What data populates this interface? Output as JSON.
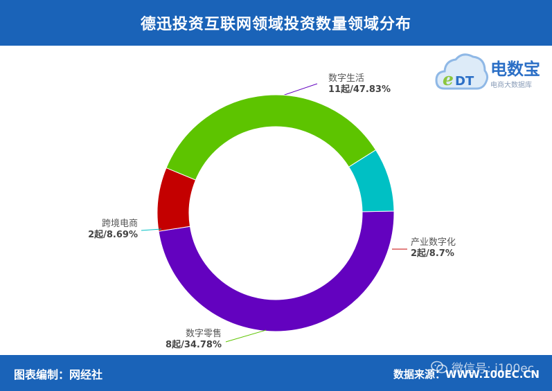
{
  "header": {
    "title": "德迅投资互联网领域投资数量领域分布"
  },
  "logo": {
    "icon": "cloud-edt-icon",
    "name": "电数宝",
    "tagline": "电商大数据库"
  },
  "chart_data": {
    "type": "pie",
    "donut": true,
    "title": "德迅投资互联网领域投资数量领域分布",
    "slices": [
      {
        "name": "数字生活",
        "label": "11起/47.83%",
        "count": 11,
        "percent": 47.83,
        "color": "#6302bf"
      },
      {
        "name": "产业数字化",
        "label": "2起/8.7%",
        "count": 2,
        "percent": 8.7,
        "color": "#c40000"
      },
      {
        "name": "数字零售",
        "label": "8起/34.78%",
        "count": 8,
        "percent": 34.78,
        "color": "#5dc400"
      },
      {
        "name": "跨境电商",
        "label": "2起/8.69%",
        "count": 2,
        "percent": 8.69,
        "color": "#00c0c4"
      }
    ]
  },
  "footer": {
    "left": "图表编制：网经社",
    "right": "数据来源：WWW.100EC.CN",
    "watermark": "微信号: i100ec",
    "watermark_icon": "wechat-icon"
  }
}
